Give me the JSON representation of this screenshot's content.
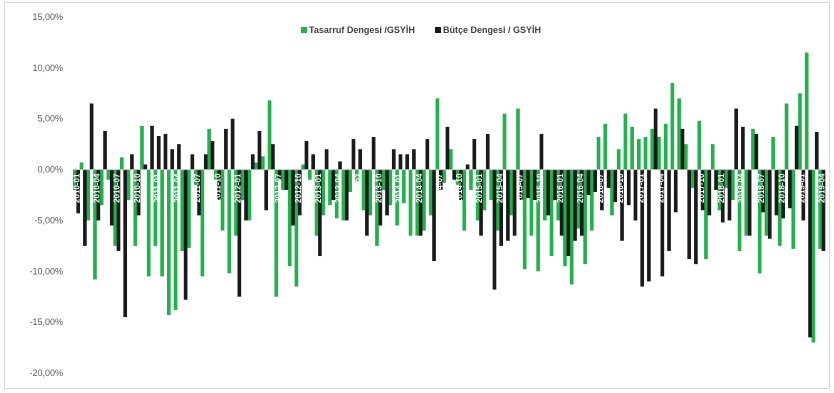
{
  "chart_data": {
    "type": "bar",
    "title": "",
    "xlabel": "",
    "ylabel": "",
    "ylim": [
      -20,
      15
    ],
    "yticks": [
      -20,
      -15,
      -10,
      -5,
      0,
      5,
      10,
      15
    ],
    "y_tick_format": "percent_2dec_comma",
    "legend_position": "top-center",
    "grid": false,
    "colors": {
      "Tasarruf Dengesi /GSYİH": "#22b14c",
      "Bütçe Dengesi / GSYİH": "#1a1a1a"
    },
    "start_month": "2010-01",
    "x_tick_labels": [
      "2010-01",
      "2010-04",
      "2010-07",
      "2010-10",
      "2011-01",
      "2011-04",
      "2011-07",
      "2011-10",
      "2012-01",
      "2012-04",
      "2012-07",
      "2012-10",
      "2013-01",
      "2013-04",
      "2013-07",
      "2013-10",
      "2014-01",
      "2014-04",
      "2014-07",
      "2014-10",
      "2015-01",
      "2015-04",
      "2015-07",
      "2015-10",
      "2016-01",
      "2016-04",
      "2016-07",
      "2016-10",
      "2017-01",
      "2017-04",
      "2017-07",
      "2017-10",
      "2018-01",
      "2018-04",
      "2018-07",
      "2018-10",
      "2019-01",
      "2019-04",
      "2019-07",
      "2019-10",
      "2020-01",
      "2020-04",
      "2020-07",
      "2020-10",
      "2021-01",
      "2021-04",
      "2021-07",
      "2021-10",
      "2022-01"
    ],
    "series": [
      {
        "name": "Tasarruf Dengesi /GSYİH",
        "values": [
          -2.0,
          0.7,
          -5.0,
          -10.8,
          -3.5,
          -1.0,
          -7.5,
          1.2,
          -3.0,
          -7.5,
          4.3,
          -10.5,
          -7.5,
          -10.5,
          -14.3,
          -13.8,
          -8.0,
          -7.7,
          -1.5,
          -10.5,
          4.0,
          -1.0,
          -6.0,
          -10.2,
          -6.5,
          -3.0,
          -5.0,
          0.7,
          1.3,
          6.8,
          -12.5,
          -2.0,
          -9.5,
          -11.5,
          0.5,
          -1.0,
          -6.5,
          -4.5,
          -3.5,
          -4.8,
          -5.0,
          -2.2,
          -1.2,
          -4.0,
          -4.5,
          -7.5,
          -2.0,
          -3.5,
          -5.5,
          -3.3,
          -6.5,
          -6.5,
          -6.0,
          -4.5,
          7.0,
          -1.3,
          2.0,
          -1.5,
          -6.0,
          -2.0,
          -5.0,
          -4.0,
          -3.0,
          -6.0,
          5.5,
          -4.5,
          6.0,
          -9.8,
          -6.5,
          -10.0,
          -5.0,
          -8.5,
          -5.0,
          -9.5,
          -11.3,
          -5.8,
          -9.3,
          -6.0,
          3.2,
          4.5,
          -4.5,
          2.0,
          5.5,
          4.2,
          3.0,
          3.2,
          4.0,
          3.2,
          4.5,
          8.5,
          7.0,
          2.5,
          -1.8,
          4.8,
          -8.8,
          2.5,
          -4.0,
          -1.8,
          -3.0,
          -8.0,
          -6.5,
          4.0,
          -10.2,
          -6.5,
          3.2,
          -7.5,
          6.5,
          -7.8,
          7.5,
          11.5,
          -17.0,
          -7.8
        ]
      },
      {
        "name": "Bütçe Dengesi / GSYİH",
        "values": [
          -4.3,
          -7.5,
          6.5,
          -5.0,
          3.8,
          -5.5,
          -8.0,
          -14.5,
          1.5,
          -4.5,
          0.5,
          4.3,
          3.3,
          3.5,
          2.0,
          2.5,
          -12.8,
          1.5,
          -4.5,
          1.5,
          2.8,
          -3.0,
          4.0,
          5.0,
          -12.5,
          -5.0,
          1.5,
          3.8,
          -4.0,
          2.5,
          -1.0,
          -2.0,
          -5.5,
          -4.5,
          2.8,
          1.5,
          -8.5,
          2.0,
          -3.0,
          0.8,
          -5.0,
          3.0,
          2.0,
          -6.5,
          3.2,
          -5.5,
          -4.5,
          2.0,
          1.5,
          1.5,
          2.0,
          -6.5,
          3.0,
          -9.0,
          -2.0,
          4.2,
          -1.0,
          -3.0,
          0.5,
          3.0,
          -6.5,
          3.5,
          -11.8,
          -7.5,
          -7.0,
          -6.5,
          -3.0,
          -2.8,
          -3.0,
          3.5,
          -4.5,
          -3.0,
          -6.5,
          -8.5,
          -7.0,
          -6.5,
          -2.5,
          -2.2,
          -4.0,
          -1.8,
          -3.2,
          -7.0,
          -3.5,
          -5.0,
          -11.5,
          -11.0,
          6.0,
          -10.5,
          -8.0,
          -4.2,
          4.0,
          -8.8,
          -9.3,
          -4.0,
          -4.5,
          -2.0,
          -5.2,
          -5.0,
          6.0,
          4.2,
          -6.5,
          3.5,
          -4.2,
          -6.8,
          -4.5,
          -4.8,
          -3.8,
          4.3,
          -5.0,
          -16.5,
          3.7,
          -8.0
        ]
      }
    ]
  }
}
